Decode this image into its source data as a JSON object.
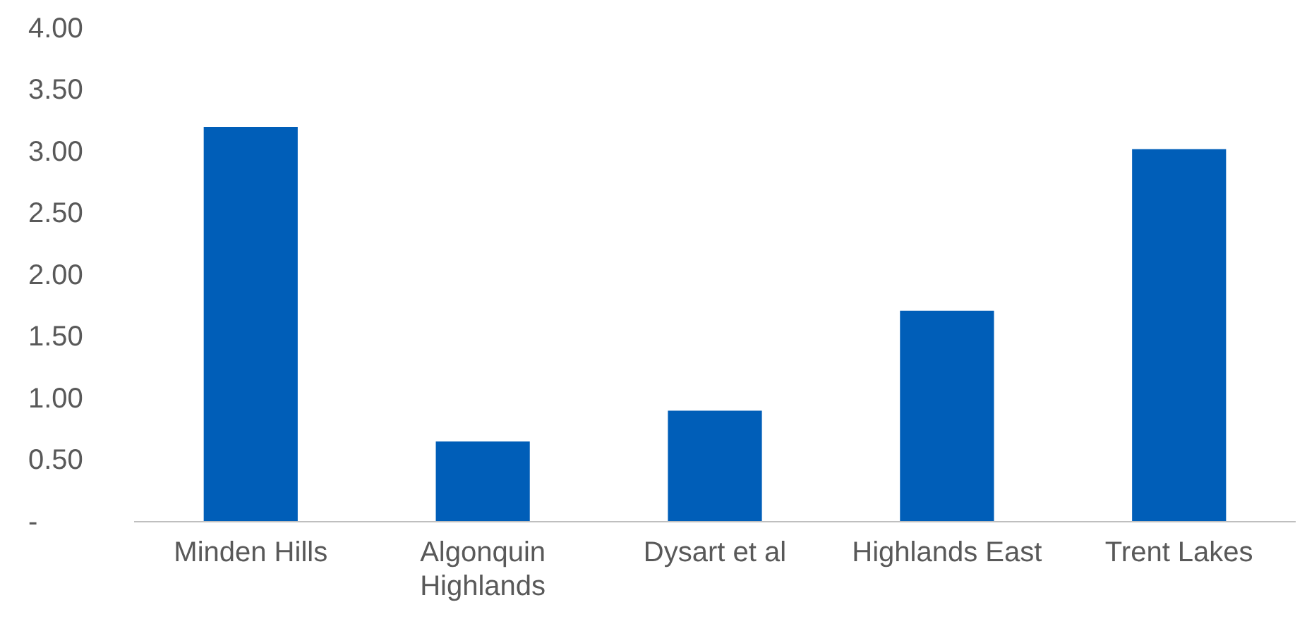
{
  "chart_data": {
    "type": "bar",
    "categories": [
      "Minden Hills",
      "Algonquin Highlands",
      "Dysart et al",
      "Highlands East",
      "Trent Lakes"
    ],
    "values": [
      3.2,
      0.65,
      0.9,
      1.71,
      3.02
    ],
    "color": "#005eb8",
    "ylim": [
      0,
      4
    ],
    "yticks": [
      {
        "value": 0,
        "label": "-"
      },
      {
        "value": 0.5,
        "label": "0.50"
      },
      {
        "value": 1,
        "label": "1.00"
      },
      {
        "value": 1.5,
        "label": "1.50"
      },
      {
        "value": 2,
        "label": "2.00"
      },
      {
        "value": 2.5,
        "label": "2.50"
      },
      {
        "value": 3,
        "label": "3.00"
      },
      {
        "value": 3.5,
        "label": "3.50"
      },
      {
        "value": 4,
        "label": "4.00"
      }
    ],
    "grid": false
  }
}
